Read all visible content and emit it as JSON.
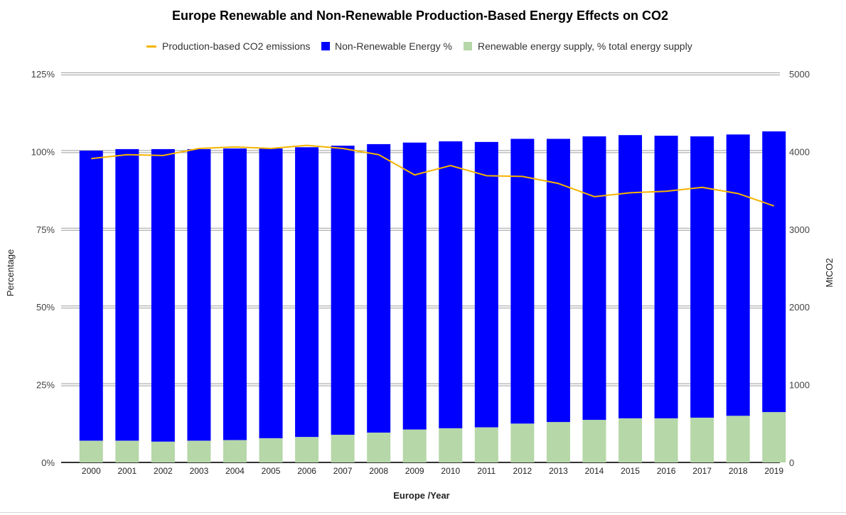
{
  "chart_data": {
    "type": "bar",
    "title": "Europe Renewable and Non-Renewable Production-Based Energy Effects on CO2",
    "xlabel": "Europe /Year",
    "ylabel": "Percentage",
    "y2label": "MtCO2",
    "stacked": true,
    "ylim": [
      0,
      125
    ],
    "y2lim": [
      0,
      5000
    ],
    "yticks": [
      "0%",
      "25%",
      "50%",
      "75%",
      "100%",
      "125%"
    ],
    "y2ticks": [
      "0",
      "1000",
      "2000",
      "3000",
      "4000",
      "5000"
    ],
    "grid": true,
    "legend_position": "top",
    "categories": [
      "2000",
      "2001",
      "2002",
      "2003",
      "2004",
      "2005",
      "2006",
      "2007",
      "2008",
      "2009",
      "2010",
      "2011",
      "2012",
      "2013",
      "2014",
      "2015",
      "2016",
      "2017",
      "2018",
      "2019"
    ],
    "series": [
      {
        "name": "Production-based CO2 emissions",
        "type": "line",
        "axis": "right",
        "color": "#f4b400",
        "values": [
          3910,
          3960,
          3950,
          4040,
          4060,
          4040,
          4080,
          4040,
          3960,
          3700,
          3820,
          3690,
          3680,
          3590,
          3420,
          3470,
          3490,
          3540,
          3460,
          3300
        ]
      },
      {
        "name": "Non-Renewable Energy %",
        "type": "bar",
        "axis": "left",
        "color": "#0000ff",
        "values": [
          93.3,
          93.8,
          94.1,
          93.8,
          93.8,
          93.2,
          93.2,
          93.0,
          92.8,
          92.3,
          92.3,
          91.8,
          91.6,
          91.1,
          91.2,
          91.1,
          90.9,
          90.5,
          90.5,
          90.3
        ]
      },
      {
        "name": "Renewable energy supply, % total energy supply",
        "type": "bar",
        "axis": "left",
        "color": "#b6d7a8",
        "values": [
          7.0,
          7.0,
          6.7,
          7.0,
          7.2,
          7.8,
          8.2,
          8.9,
          9.6,
          10.6,
          11.0,
          11.3,
          12.5,
          13.0,
          13.7,
          14.2,
          14.2,
          14.4,
          15.0,
          16.2
        ]
      }
    ]
  }
}
